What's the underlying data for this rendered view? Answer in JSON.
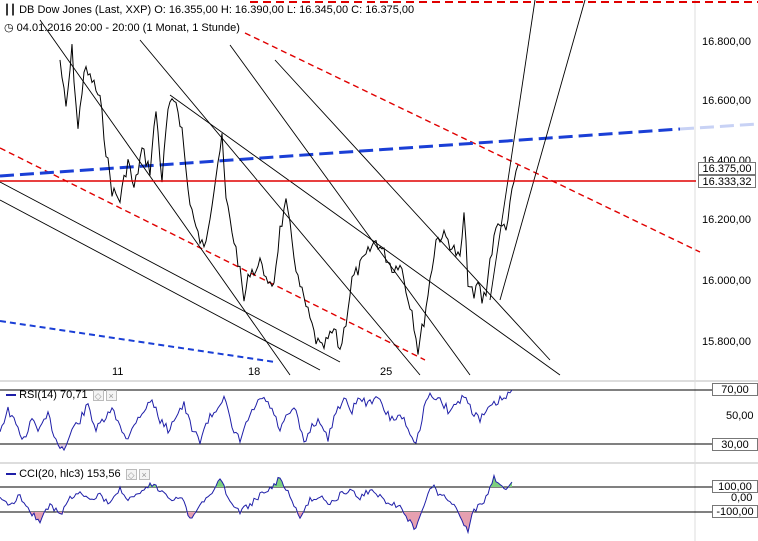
{
  "header": {
    "instrument_line": "DB Dow Jones (Last, XXP)  O: 16.355,00  H: 16.390,00  L: 16.345,00  C: 16.375,00",
    "period_line": "04.01.2016 20:00 - 20:00 (1 Monat, 1 Stunde)"
  },
  "price_axis": {
    "ticks": [
      "16.800,00",
      "16.600,00",
      "16.400,00",
      "16.200,00",
      "16.000,00",
      "15.800,00"
    ],
    "last_price_tag": "16.375,00",
    "horizontal_line_tag": "16.333,32"
  },
  "x_axis": {
    "ticks": [
      "11",
      "18",
      "25"
    ]
  },
  "rsi_panel": {
    "title": "RSI(14)",
    "value": "70,71",
    "ticks": [
      "70,00",
      "50,00",
      "30,00"
    ],
    "buttons": [
      "◇",
      "×"
    ]
  },
  "cci_panel": {
    "title": "CCI(20, hlc3)",
    "value": "153,56",
    "ticks": [
      "100,00",
      "0,00",
      "-100,00"
    ],
    "buttons": [
      "◇",
      "×"
    ]
  },
  "icons": {
    "chart_icon": "candlestick-icon",
    "clock_icon": "clock-icon"
  },
  "colors": {
    "red_line": "#e00000",
    "blue_trend": "#1a3fd6",
    "price": "#000000",
    "rsi_line": "#1f1fa8",
    "cci_pos_fill": "#7fd07f",
    "cci_neg_fill": "#e6a0b0"
  },
  "chart_data": {
    "type": "line",
    "y_axis_range": [
      15720,
      16880
    ],
    "horizontal_line": 16333.32,
    "last_close": 16375
  }
}
